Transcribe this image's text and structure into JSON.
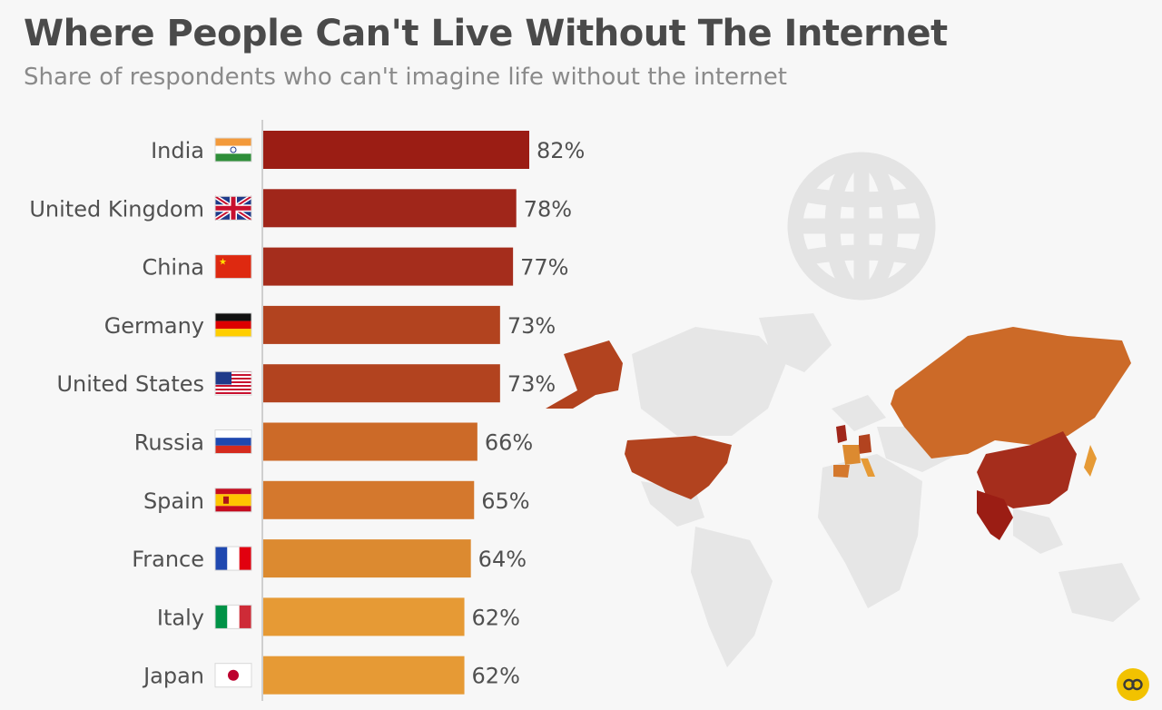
{
  "header": {
    "title": "Where People Can't Live Without The Internet",
    "subtitle": "Share of respondents who can't imagine life without the internet"
  },
  "colors": {
    "title": "#4a4a4a",
    "subtitle": "#8a8a8a",
    "background": "#f7f7f7",
    "axis": "#cfcfcf",
    "map_land": "#e6e6e6",
    "globe": "#e4e4e4"
  },
  "icons": [
    "globe-icon",
    "world-map",
    "logo-icon"
  ],
  "chart_data": {
    "type": "bar",
    "orientation": "horizontal",
    "categories": [
      "India",
      "United Kingdom",
      "China",
      "Germany",
      "United States",
      "Russia",
      "Spain",
      "France",
      "Italy",
      "Japan"
    ],
    "values": [
      82,
      78,
      77,
      73,
      73,
      66,
      65,
      64,
      62,
      62
    ],
    "value_labels": [
      "82%",
      "78%",
      "77%",
      "73%",
      "73%",
      "66%",
      "65%",
      "64%",
      "62%",
      "62%"
    ],
    "bar_colors": [
      "#9b1d14",
      "#a0261a",
      "#a52d1c",
      "#b2431f",
      "#b2431f",
      "#cc6a28",
      "#d4782d",
      "#dc8a30",
      "#e69a35",
      "#e69a35"
    ],
    "flags": [
      "india-flag-icon",
      "uk-flag-icon",
      "china-flag-icon",
      "germany-flag-icon",
      "usa-flag-icon",
      "russia-flag-icon",
      "spain-flag-icon",
      "france-flag-icon",
      "italy-flag-icon",
      "japan-flag-icon"
    ],
    "xlim": [
      0,
      100
    ],
    "grid": false,
    "legend": "none"
  }
}
